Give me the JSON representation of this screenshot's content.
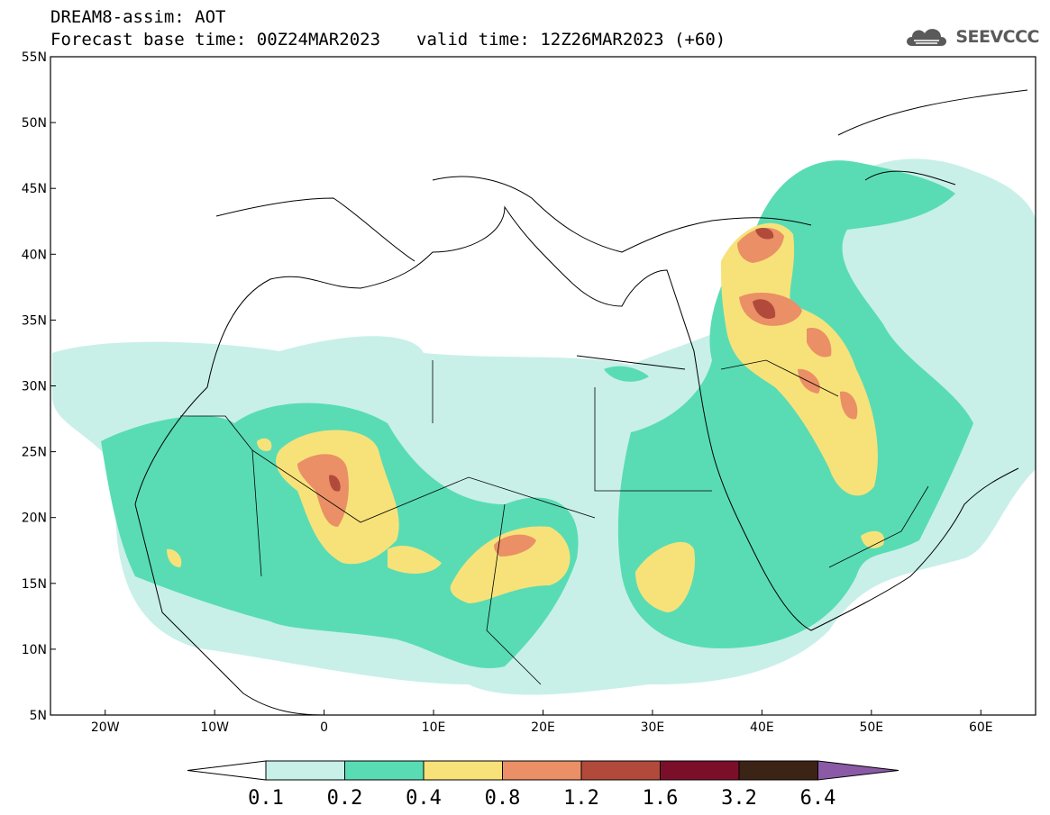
{
  "header": {
    "title": "DREAM8-assim: AOT",
    "base_time": "Forecast base time: 00Z24MAR2023",
    "valid_time": "valid time: 12Z26MAR2023 (+60)"
  },
  "logo": {
    "text": "SEEVCCC",
    "icon": "cloud-icon"
  },
  "map": {
    "lon_range": [
      -25,
      65
    ],
    "lat_range": [
      5,
      55
    ],
    "lon_ticks": [
      "20W",
      "10W",
      "0",
      "10E",
      "20E",
      "30E",
      "40E",
      "50E",
      "60E"
    ],
    "lat_ticks": [
      "5N",
      "10N",
      "15N",
      "20N",
      "25N",
      "30N",
      "35N",
      "40N",
      "45N",
      "50N",
      "55N"
    ],
    "field": "Aerosol optical thickness (dust)"
  },
  "colorbar": {
    "labels": [
      "0.1",
      "0.2",
      "0.4",
      "0.8",
      "1.2",
      "1.6",
      "3.2",
      "6.4"
    ],
    "colors": [
      "#c8f0e8",
      "#59dcb4",
      "#f7e27a",
      "#ea8f66",
      "#b24a3c",
      "#7b0f2a",
      "#3b2316",
      "#8a5aa6"
    ],
    "under_color": "#ffffff"
  }
}
